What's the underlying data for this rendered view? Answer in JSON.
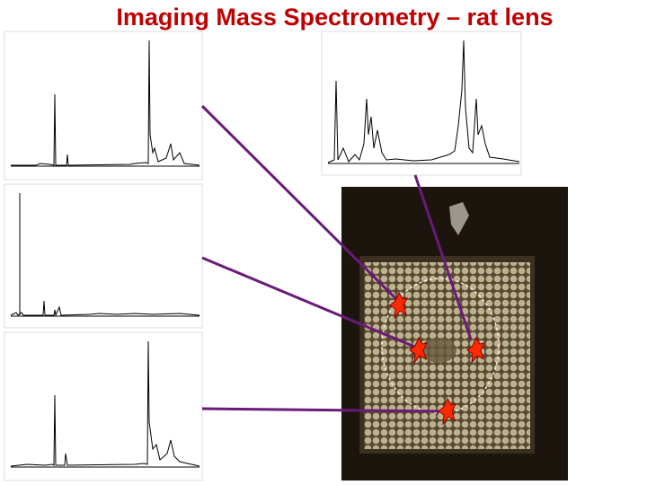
{
  "header": {
    "title": "Imaging Mass Spectrometry – rat lens"
  }
}
